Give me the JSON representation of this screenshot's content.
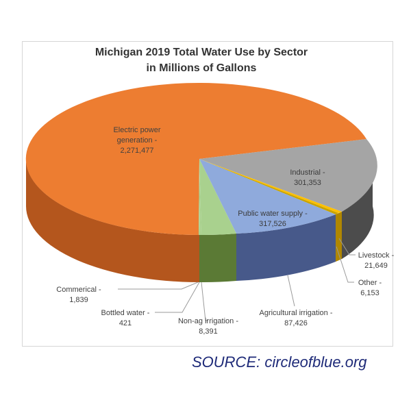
{
  "chart_data": {
    "type": "pie",
    "title": "Michigan 2019 Total Water Use by Sector",
    "subtitle": "in Millions of Gallons",
    "series": [
      {
        "label": "Electric power generation -",
        "value": 2271477,
        "value_text": "2,271,477",
        "color": "#ED7D31"
      },
      {
        "label": "Industrial -",
        "value": 301353,
        "value_text": "301,353",
        "color": "#A5A5A5"
      },
      {
        "label": "Livestock -",
        "value": 21649,
        "value_text": "21,649",
        "color": "#FFC000"
      },
      {
        "label": "Other -",
        "value": 6153,
        "value_text": "6,153",
        "color": "#C9A400"
      },
      {
        "label": "Public water supply -",
        "value": 317526,
        "value_text": "317,526",
        "color": "#8FAADC"
      },
      {
        "label": "Agricultural irrigation -",
        "value": 87426,
        "value_text": "87,426",
        "color": "#6F8FCB"
      },
      {
        "label": "Non-ag irrigation -",
        "value": 8391,
        "value_text": "8,391",
        "color": "#5B7A35"
      },
      {
        "label": "Bottled water -",
        "value": 421,
        "value_text": "421",
        "color": "#A9D18E"
      },
      {
        "label": "Commerical -",
        "value": 1839,
        "value_text": "1,839",
        "color": "#A9D18E"
      }
    ],
    "legend": "none",
    "style": "3d-pie"
  },
  "source": "SOURCE: circleofblue.org"
}
